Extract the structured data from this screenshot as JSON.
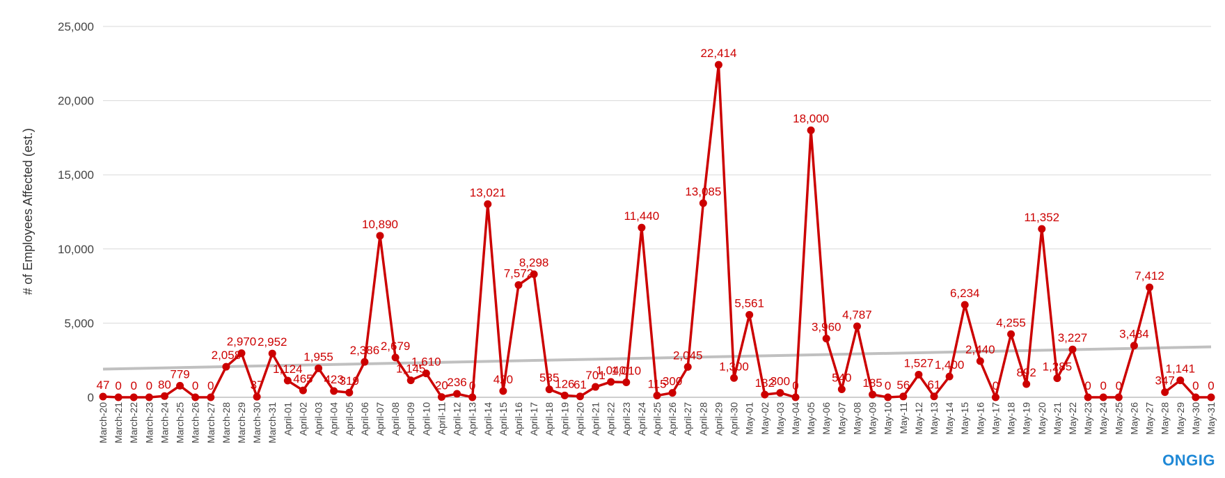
{
  "brand": "ONGIG",
  "colors": {
    "series": "#cc0000",
    "trend": "#c0c0c0",
    "grid": "#d9d9d9",
    "axis_text": "#444444",
    "brand": "#1e88d6"
  },
  "chart_data": {
    "type": "line",
    "title": "",
    "xlabel": "",
    "ylabel": "# of Employees Affected (est.)",
    "ylim": [
      0,
      25000
    ],
    "yticks": [
      0,
      5000,
      10000,
      15000,
      20000,
      25000
    ],
    "ytick_labels": [
      "0",
      "5,000",
      "10,000",
      "15,000",
      "20,000",
      "25,000"
    ],
    "grid": "horizontal",
    "trendline": {
      "type": "linear",
      "start": 1900,
      "end": 3400
    },
    "categories": [
      "March-20",
      "March-21",
      "March-22",
      "March-23",
      "March-24",
      "March-25",
      "March-26",
      "March-27",
      "March-28",
      "March-29",
      "March-30",
      "March-31",
      "April-01",
      "April-02",
      "April-03",
      "April-04",
      "April-05",
      "April-06",
      "April-07",
      "April-08",
      "April-09",
      "April-10",
      "April-11",
      "April-12",
      "April-13",
      "April-14",
      "April-15",
      "April-16",
      "April-17",
      "April-18",
      "April-19",
      "April-20",
      "April-21",
      "April-22",
      "April-23",
      "April-24",
      "April-25",
      "April-26",
      "April-27",
      "April-28",
      "April-29",
      "April-30",
      "May-01",
      "May-02",
      "May-03",
      "May-04",
      "May-05",
      "May-06",
      "May-07",
      "May-08",
      "May-09",
      "May-10",
      "May-11",
      "May-12",
      "May-13",
      "May-14",
      "May-15",
      "May-16",
      "May-17",
      "May-18",
      "May-19",
      "May-20",
      "May-21",
      "May-22",
      "May-23",
      "May-24",
      "May-25",
      "May-26",
      "May-27",
      "May-28",
      "May-29",
      "May-30",
      "May-31"
    ],
    "series": [
      {
        "values": [
          47,
          0,
          0,
          0,
          80,
          779,
          0,
          0,
          2058,
          2970,
          37,
          2952,
          1124,
          465,
          1955,
          423,
          319,
          2386,
          10890,
          2679,
          1145,
          1610,
          20,
          236,
          0,
          13021,
          420,
          7572,
          8298,
          535,
          126,
          61,
          701,
          1040,
          1010,
          11440,
          115,
          300,
          2045,
          13085,
          22414,
          1300,
          5561,
          182,
          300,
          0,
          18000,
          3960,
          540,
          4787,
          185,
          0,
          56,
          1527,
          61,
          1400,
          6234,
          2440,
          0,
          4255,
          892,
          11352,
          1285,
          3227,
          0,
          0,
          0,
          3484,
          7412,
          347,
          1141,
          0,
          0
        ],
        "labels": [
          "47",
          "0",
          "0",
          "0",
          "80",
          "779",
          "0",
          "0",
          "2,058",
          "2,970",
          "37",
          "2,952",
          "1,124",
          "465",
          "1,955",
          "423",
          "319",
          "2,386",
          "10,890",
          "2,679",
          "1,145",
          "1,610",
          "20",
          "236",
          "0",
          "13,021",
          "420",
          "7,572",
          "8,298",
          "535",
          "126",
          "61",
          "701",
          "1,040",
          "1,010",
          "11,440",
          "115",
          "300",
          "2,045",
          "13,085",
          "22,414",
          "1,300",
          "5,561",
          "182",
          "300",
          "0",
          "18,000",
          "3,960",
          "540",
          "4,787",
          "185",
          "0",
          "56",
          "1,527",
          "61",
          "1,400",
          "6,234",
          "2,440",
          "0",
          "4,255",
          "892",
          "11,352",
          "1,285",
          "3,227",
          "0",
          "0",
          "0",
          "3,484",
          "7,412",
          "347",
          "1,141",
          "0",
          "0"
        ]
      }
    ]
  }
}
